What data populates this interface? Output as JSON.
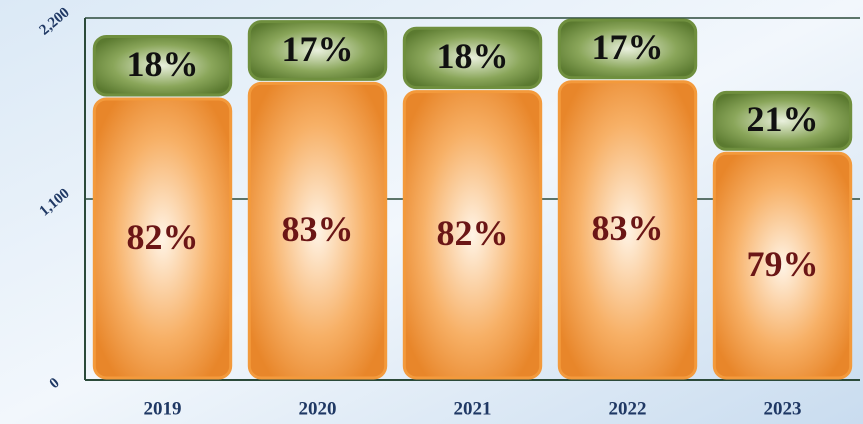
{
  "chart_data": {
    "type": "stacked_bar",
    "categories": [
      "2019",
      "2020",
      "2021",
      "2022",
      "2023"
    ],
    "series": [
      {
        "color": "#f39a3c",
        "values": [
          1720,
          1815,
          1765,
          1825,
          1390
        ],
        "labels": [
          "82%",
          "83%",
          "82%",
          "83%",
          "79%"
        ],
        "label_color": "#6b1616"
      },
      {
        "color": "#6f8f3e",
        "values": [
          380,
          375,
          385,
          375,
          370
        ],
        "labels": [
          "18%",
          "17%",
          "18%",
          "17%",
          "21%"
        ],
        "label_color": "#111111"
      }
    ],
    "ylim": [
      0,
      2200
    ],
    "yticks": [
      0,
      {
        "value": 1100,
        "label": "1,100"
      },
      {
        "value": 2200,
        "label": "2,200"
      }
    ],
    "grid": true
  }
}
